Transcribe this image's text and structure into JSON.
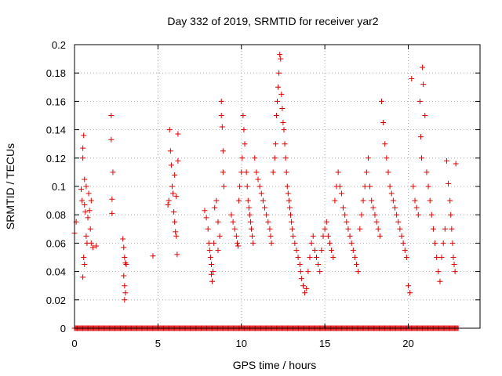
{
  "chart_data": {
    "type": "scatter",
    "title": "Day 332 of 2019, SRMTID for receiver yar2",
    "xlabel": "GPS time / hours",
    "ylabel": "SRMTID / TECUs",
    "xlim": [
      0,
      24.3
    ],
    "ylim": [
      0,
      0.2
    ],
    "xticks": [
      0,
      5,
      10,
      15,
      20
    ],
    "xtick_labels": [
      "0",
      "5",
      "10",
      "15",
      "20"
    ],
    "yticks": [
      0,
      0.02,
      0.04,
      0.06,
      0.08,
      0.1,
      0.12,
      0.14,
      0.16,
      0.18,
      0.2
    ],
    "ytick_labels": [
      "0",
      "0.02",
      "0.04",
      "0.06",
      "0.08",
      "0.1",
      "0.12",
      "0.14",
      "0.16",
      "0.18",
      "0.2"
    ],
    "grid": true,
    "marker": "+",
    "series": [
      {
        "name": "SRMTID",
        "color": "#dd0000",
        "points": [
          [
            0.0,
            0.067
          ],
          [
            0.1,
            0.075
          ],
          [
            0.4,
            0.098
          ],
          [
            0.45,
            0.09
          ],
          [
            0.5,
            0.12
          ],
          [
            0.5,
            0.127
          ],
          [
            0.55,
            0.136
          ],
          [
            0.6,
            0.105
          ],
          [
            0.6,
            0.087
          ],
          [
            0.65,
            0.082
          ],
          [
            0.7,
            0.1
          ],
          [
            0.55,
            0.05
          ],
          [
            0.6,
            0.045
          ],
          [
            0.5,
            0.036
          ],
          [
            0.7,
            0.065
          ],
          [
            0.8,
            0.078
          ],
          [
            0.9,
            0.083
          ],
          [
            1.0,
            0.09
          ],
          [
            0.95,
            0.07
          ],
          [
            1.0,
            0.06
          ],
          [
            1.1,
            0.057
          ],
          [
            1.3,
            0.058
          ],
          [
            0.85,
            0.095
          ],
          [
            0.75,
            0.06
          ],
          [
            2.2,
            0.15
          ],
          [
            2.2,
            0.133
          ],
          [
            2.3,
            0.11
          ],
          [
            2.25,
            0.091
          ],
          [
            2.25,
            0.081
          ],
          [
            2.9,
            0.063
          ],
          [
            2.95,
            0.057
          ],
          [
            3.0,
            0.05
          ],
          [
            3.05,
            0.046
          ],
          [
            2.95,
            0.037
          ],
          [
            3.0,
            0.03
          ],
          [
            3.05,
            0.025
          ],
          [
            3.0,
            0.02
          ],
          [
            3.1,
            0.045
          ],
          [
            4.7,
            0.051
          ],
          [
            5.6,
            0.087
          ],
          [
            5.65,
            0.09
          ],
          [
            5.7,
            0.14
          ],
          [
            5.75,
            0.125
          ],
          [
            5.8,
            0.115
          ],
          [
            5.85,
            0.1
          ],
          [
            5.9,
            0.095
          ],
          [
            5.95,
            0.082
          ],
          [
            6.0,
            0.075
          ],
          [
            6.05,
            0.068
          ],
          [
            6.1,
            0.065
          ],
          [
            6.15,
            0.052
          ],
          [
            6.2,
            0.118
          ],
          [
            6.2,
            0.137
          ],
          [
            6.0,
            0.108
          ],
          [
            6.1,
            0.093
          ],
          [
            7.8,
            0.083
          ],
          [
            7.9,
            0.078
          ],
          [
            8.0,
            0.07
          ],
          [
            8.05,
            0.06
          ],
          [
            8.1,
            0.055
          ],
          [
            8.15,
            0.05
          ],
          [
            8.2,
            0.045
          ],
          [
            8.2,
            0.038
          ],
          [
            8.25,
            0.033
          ],
          [
            8.3,
            0.04
          ],
          [
            8.35,
            0.06
          ],
          [
            8.4,
            0.085
          ],
          [
            8.5,
            0.09
          ],
          [
            8.6,
            0.075
          ],
          [
            8.7,
            0.065
          ],
          [
            8.8,
            0.16
          ],
          [
            8.8,
            0.15
          ],
          [
            8.85,
            0.142
          ],
          [
            8.9,
            0.125
          ],
          [
            8.9,
            0.11
          ],
          [
            8.95,
            0.1
          ],
          [
            8.6,
            0.055
          ],
          [
            9.4,
            0.08
          ],
          [
            9.5,
            0.075
          ],
          [
            9.6,
            0.07
          ],
          [
            9.7,
            0.065
          ],
          [
            9.75,
            0.06
          ],
          [
            9.8,
            0.058
          ],
          [
            9.85,
            0.09
          ],
          [
            9.9,
            0.1
          ],
          [
            10.0,
            0.11
          ],
          [
            10.05,
            0.12
          ],
          [
            10.1,
            0.15
          ],
          [
            10.15,
            0.14
          ],
          [
            10.2,
            0.13
          ],
          [
            10.3,
            0.11
          ],
          [
            10.35,
            0.1
          ],
          [
            10.4,
            0.09
          ],
          [
            10.45,
            0.085
          ],
          [
            10.5,
            0.08
          ],
          [
            10.55,
            0.075
          ],
          [
            10.6,
            0.07
          ],
          [
            10.65,
            0.065
          ],
          [
            10.7,
            0.06
          ],
          [
            10.8,
            0.12
          ],
          [
            10.9,
            0.11
          ],
          [
            11.0,
            0.105
          ],
          [
            11.1,
            0.1
          ],
          [
            11.2,
            0.095
          ],
          [
            11.3,
            0.09
          ],
          [
            11.4,
            0.085
          ],
          [
            11.5,
            0.08
          ],
          [
            11.6,
            0.075
          ],
          [
            11.7,
            0.07
          ],
          [
            11.75,
            0.065
          ],
          [
            11.8,
            0.06
          ],
          [
            11.9,
            0.11
          ],
          [
            12.0,
            0.12
          ],
          [
            12.05,
            0.13
          ],
          [
            12.1,
            0.15
          ],
          [
            12.15,
            0.16
          ],
          [
            12.2,
            0.17
          ],
          [
            12.25,
            0.18
          ],
          [
            12.3,
            0.193
          ],
          [
            12.35,
            0.19
          ],
          [
            12.4,
            0.165
          ],
          [
            12.45,
            0.155
          ],
          [
            12.5,
            0.145
          ],
          [
            12.55,
            0.14
          ],
          [
            12.6,
            0.13
          ],
          [
            12.65,
            0.12
          ],
          [
            12.7,
            0.11
          ],
          [
            12.75,
            0.1
          ],
          [
            12.8,
            0.095
          ],
          [
            12.85,
            0.09
          ],
          [
            12.9,
            0.085
          ],
          [
            12.95,
            0.08
          ],
          [
            13.0,
            0.075
          ],
          [
            13.05,
            0.07
          ],
          [
            13.1,
            0.065
          ],
          [
            13.2,
            0.06
          ],
          [
            13.3,
            0.055
          ],
          [
            13.4,
            0.05
          ],
          [
            13.5,
            0.045
          ],
          [
            13.55,
            0.04
          ],
          [
            13.6,
            0.035
          ],
          [
            13.7,
            0.03
          ],
          [
            13.8,
            0.025
          ],
          [
            13.9,
            0.028
          ],
          [
            14.0,
            0.04
          ],
          [
            14.1,
            0.05
          ],
          [
            14.2,
            0.06
          ],
          [
            14.3,
            0.065
          ],
          [
            14.4,
            0.055
          ],
          [
            14.5,
            0.05
          ],
          [
            14.6,
            0.045
          ],
          [
            14.7,
            0.04
          ],
          [
            14.8,
            0.055
          ],
          [
            14.9,
            0.065
          ],
          [
            15.0,
            0.07
          ],
          [
            15.1,
            0.075
          ],
          [
            15.2,
            0.065
          ],
          [
            15.3,
            0.06
          ],
          [
            15.4,
            0.055
          ],
          [
            15.5,
            0.05
          ],
          [
            15.6,
            0.09
          ],
          [
            15.7,
            0.1
          ],
          [
            15.8,
            0.11
          ],
          [
            15.9,
            0.1
          ],
          [
            16.0,
            0.095
          ],
          [
            16.1,
            0.085
          ],
          [
            16.2,
            0.08
          ],
          [
            16.3,
            0.075
          ],
          [
            16.4,
            0.07
          ],
          [
            16.5,
            0.065
          ],
          [
            16.6,
            0.06
          ],
          [
            16.7,
            0.055
          ],
          [
            16.8,
            0.05
          ],
          [
            16.9,
            0.045
          ],
          [
            17.0,
            0.04
          ],
          [
            17.1,
            0.07
          ],
          [
            17.2,
            0.08
          ],
          [
            17.3,
            0.09
          ],
          [
            17.4,
            0.1
          ],
          [
            17.5,
            0.11
          ],
          [
            17.6,
            0.12
          ],
          [
            17.7,
            0.1
          ],
          [
            17.8,
            0.09
          ],
          [
            17.9,
            0.085
          ],
          [
            18.0,
            0.08
          ],
          [
            18.1,
            0.075
          ],
          [
            18.2,
            0.07
          ],
          [
            18.3,
            0.065
          ],
          [
            18.4,
            0.16
          ],
          [
            18.5,
            0.145
          ],
          [
            18.6,
            0.13
          ],
          [
            18.7,
            0.12
          ],
          [
            18.8,
            0.11
          ],
          [
            18.9,
            0.1
          ],
          [
            19.0,
            0.095
          ],
          [
            19.1,
            0.09
          ],
          [
            19.2,
            0.085
          ],
          [
            19.3,
            0.08
          ],
          [
            19.4,
            0.075
          ],
          [
            19.5,
            0.07
          ],
          [
            19.6,
            0.065
          ],
          [
            19.7,
            0.06
          ],
          [
            19.8,
            0.055
          ],
          [
            19.9,
            0.05
          ],
          [
            20.0,
            0.03
          ],
          [
            20.1,
            0.025
          ],
          [
            20.2,
            0.176
          ],
          [
            20.3,
            0.1
          ],
          [
            20.4,
            0.09
          ],
          [
            20.5,
            0.085
          ],
          [
            20.6,
            0.08
          ],
          [
            20.7,
            0.16
          ],
          [
            20.75,
            0.135
          ],
          [
            20.8,
            0.12
          ],
          [
            20.85,
            0.184
          ],
          [
            20.9,
            0.172
          ],
          [
            21.0,
            0.15
          ],
          [
            21.1,
            0.11
          ],
          [
            21.2,
            0.1
          ],
          [
            21.3,
            0.09
          ],
          [
            21.4,
            0.08
          ],
          [
            21.5,
            0.07
          ],
          [
            21.6,
            0.06
          ],
          [
            21.7,
            0.05
          ],
          [
            21.8,
            0.04
          ],
          [
            21.9,
            0.033
          ],
          [
            22.0,
            0.05
          ],
          [
            22.1,
            0.06
          ],
          [
            22.2,
            0.07
          ],
          [
            22.3,
            0.118
          ],
          [
            22.4,
            0.102
          ],
          [
            22.5,
            0.09
          ],
          [
            22.55,
            0.08
          ],
          [
            22.6,
            0.07
          ],
          [
            22.65,
            0.06
          ],
          [
            22.7,
            0.05
          ],
          [
            22.75,
            0.045
          ],
          [
            22.8,
            0.04
          ],
          [
            22.85,
            0.116
          ]
        ]
      },
      {
        "name": "zero-line",
        "color": "#dd0000",
        "x_start": 0.0,
        "x_end": 23.0,
        "y": 0
      }
    ]
  }
}
